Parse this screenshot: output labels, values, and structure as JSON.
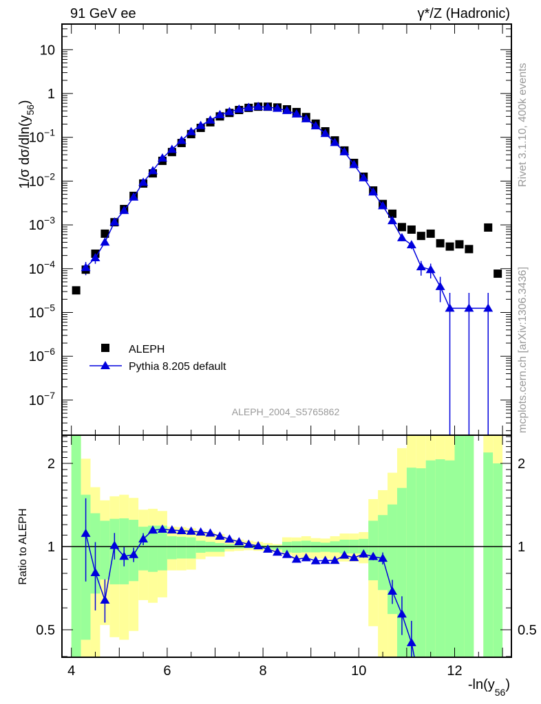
{
  "chart_data": {
    "type": "scatter",
    "title_left": "91 GeV ee",
    "title_right": "γ*/Z (Hadronic)",
    "xlabel": "-ln(y",
    "xlabel_sub": "56",
    "xlabel_end": ")",
    "ylabel": "1/σ  dσ/dln(y",
    "ylabel_sub": "56",
    "ylabel_end": ")",
    "ratio_ylabel": "Ratio to ALEPH",
    "analysis_label": "ALEPH_2004_S5765862",
    "side_label_top": "Rivet 3.1.10,  400k events",
    "side_label_bottom": "mcplots.cern.ch [arXiv:1306.3436]",
    "xlim": [
      3.8,
      13.18
    ],
    "ylim": [
      1.63e-08,
      38.5
    ],
    "yscale": "log",
    "ratio_ylim": [
      0.398,
      2.52
    ],
    "ratio_yscale": "log",
    "x_tick_labels": [
      "4",
      "6",
      "8",
      "10",
      "12"
    ],
    "y_tick_labels": [
      {
        "value": 10,
        "base": "10",
        "exp": ""
      },
      {
        "value": 1,
        "base": "1",
        "exp": ""
      },
      {
        "value": 0.1,
        "base": "10",
        "exp": "−1"
      },
      {
        "value": 0.01,
        "base": "10",
        "exp": "−2"
      },
      {
        "value": 0.001,
        "base": "10",
        "exp": "−3"
      },
      {
        "value": 0.0001,
        "base": "10",
        "exp": "−4"
      },
      {
        "value": 1e-05,
        "base": "10",
        "exp": "−5"
      },
      {
        "value": 1e-06,
        "base": "10",
        "exp": "−6"
      },
      {
        "value": 1e-07,
        "base": "10",
        "exp": "−7"
      }
    ],
    "ratio_tick_labels": [
      "0.5",
      "1",
      "2"
    ],
    "legend": {
      "placement": "lower-left",
      "entries": [
        "ALEPH",
        "Pythia 8.205 default"
      ]
    },
    "colors": {
      "data": "#000000",
      "mc": "#0000dd",
      "band_total": "#ffff99",
      "band_stat": "#99ff99"
    },
    "x": [
      4.1,
      4.3,
      4.5,
      4.7,
      4.9,
      5.1,
      5.3,
      5.5,
      5.7,
      5.9,
      6.1,
      6.3,
      6.5,
      6.7,
      6.9,
      7.1,
      7.3,
      7.5,
      7.7,
      7.9,
      8.1,
      8.3,
      8.5,
      8.7,
      8.9,
      9.1,
      9.3,
      9.5,
      9.7,
      9.9,
      10.1,
      10.3,
      10.5,
      10.7,
      10.9,
      11.1,
      11.3,
      11.5,
      11.7,
      11.9,
      12.1,
      12.3,
      12.5,
      12.7,
      12.9
    ],
    "series": [
      {
        "name": "ALEPH",
        "marker": "square",
        "values": [
          3.2e-05,
          9.5e-05,
          0.00022,
          0.00063,
          0.00115,
          0.0023,
          0.0046,
          0.0088,
          0.015,
          0.029,
          0.046,
          0.074,
          0.118,
          0.164,
          0.22,
          0.3,
          0.36,
          0.42,
          0.47,
          0.5,
          0.5,
          0.48,
          0.435,
          0.377,
          0.29,
          0.205,
          0.137,
          0.085,
          0.05,
          0.026,
          0.0126,
          0.0061,
          0.003,
          0.0018,
          0.00089,
          0.00078,
          0.00056,
          0.00063,
          0.00038,
          0.00032,
          0.00036,
          0.00028,
          null,
          0.00087,
          7.7e-05
        ],
        "band_total": [
          [
            0,
            10
          ],
          [
            0,
            2.08
          ],
          [
            0,
            1.64
          ],
          [
            0.52,
            1.47
          ],
          [
            0.47,
            1.52
          ],
          [
            0.46,
            1.54
          ],
          [
            0.495,
            1.5
          ],
          [
            0.64,
            1.36
          ],
          [
            0.626,
            1.37
          ],
          [
            0.655,
            1.345
          ],
          [
            0.82,
            1.18
          ],
          [
            0.82,
            1.176
          ],
          [
            0.825,
            1.165
          ],
          [
            0.9,
            1.14
          ],
          [
            0.92,
            1.13
          ],
          [
            0.92,
            1.11
          ],
          [
            0.96,
            1.07
          ],
          [
            0.965,
            1.06
          ],
          [
            0.97,
            1.05
          ],
          [
            0.965,
            1.04
          ],
          [
            0.96,
            1.03
          ],
          [
            0.957,
            1.02
          ],
          [
            0.935,
            1.08
          ],
          [
            0.905,
            1.079
          ],
          [
            0.9,
            1.09
          ],
          [
            0.905,
            1.073
          ],
          [
            0.905,
            1.069
          ],
          [
            0.883,
            1.09
          ],
          [
            0.883,
            1.115
          ],
          [
            0.883,
            1.115
          ],
          [
            0.87,
            1.128
          ],
          [
            0.515,
            1.485
          ],
          [
            0,
            1.6
          ],
          [
            0,
            1.85
          ],
          [
            0,
            2.27
          ],
          [
            0,
            10
          ],
          [
            0,
            10
          ],
          [
            0,
            10
          ],
          [
            0,
            10
          ],
          [
            0,
            10
          ],
          [
            0,
            10
          ],
          [
            0,
            10
          ],
          null,
          [
            0,
            10
          ],
          [
            0,
            10
          ]
        ],
        "band_stat": [
          [
            0,
            10
          ],
          [
            0.46,
            1.54
          ],
          [
            0.676,
            1.32
          ],
          [
            0.76,
            1.24
          ],
          [
            0.73,
            1.26
          ],
          [
            0.73,
            1.265
          ],
          [
            0.75,
            1.25
          ],
          [
            0.82,
            1.18
          ],
          [
            0.81,
            1.19
          ],
          [
            0.82,
            1.19
          ],
          [
            0.9,
            1.09
          ],
          [
            0.905,
            1.085
          ],
          [
            0.905,
            1.08
          ],
          [
            0.95,
            1.05
          ],
          [
            0.957,
            1.04
          ],
          [
            0.957,
            1.03
          ],
          [
            0.98,
            1.02
          ],
          [
            0.985,
            1.013
          ],
          [
            0.987,
            1.01
          ],
          [
            0.98,
            1.013
          ],
          [
            0.98,
            1.01
          ],
          [
            0.975,
            1.01
          ],
          [
            0.953,
            1.04
          ],
          [
            0.95,
            1.045
          ],
          [
            0.953,
            1.05
          ],
          [
            0.953,
            1.04
          ],
          [
            0.957,
            1.033
          ],
          [
            0.953,
            1.045
          ],
          [
            0.944,
            1.059
          ],
          [
            0.944,
            1.059
          ],
          [
            0.944,
            1.066
          ],
          [
            0.755,
            1.24
          ],
          [
            0.696,
            1.3
          ],
          [
            0.57,
            1.42
          ],
          [
            0,
            1.63
          ],
          [
            0,
            1.93
          ],
          [
            0,
            1.92
          ],
          [
            0,
            2.05
          ],
          [
            0,
            2.07
          ],
          [
            0,
            2.05
          ],
          [
            0,
            10
          ],
          [
            0,
            10
          ],
          null,
          [
            0,
            2.19
          ],
          [
            0,
            2.0
          ]
        ]
      },
      {
        "name": "Pythia 8.205 default",
        "marker": "triangle",
        "values": [
          null,
          0.000106,
          0.000177,
          0.000403,
          0.00116,
          0.00212,
          0.0043,
          0.00937,
          0.0172,
          0.0335,
          0.0528,
          0.0844,
          0.134,
          0.185,
          0.246,
          0.327,
          0.383,
          0.437,
          0.479,
          0.503,
          0.489,
          0.458,
          0.407,
          0.339,
          0.264,
          0.182,
          0.122,
          0.0757,
          0.0465,
          0.0237,
          0.01184,
          0.00561,
          0.00272,
          0.00124,
          0.000507,
          0.00035,
          0.00011,
          9.5e-05,
          3.9e-05,
          1.25e-05,
          null,
          1.25e-05,
          null,
          1.25e-05,
          null
        ],
        "rel_err": [
          null,
          [
            0.33,
            0.34
          ],
          [
            0.27,
            0.29
          ],
          [
            0.17,
            0.19
          ],
          [
            0.11,
            0.11
          ],
          [
            0.08,
            0.08
          ],
          [
            0.06,
            0.06
          ],
          [
            0.05,
            0.05
          ],
          [
            0.02,
            0.02
          ],
          [
            0.01,
            0.01
          ],
          [
            0.01,
            0.01
          ],
          [
            0.01,
            0.01
          ],
          [
            0.01,
            0.01
          ],
          [
            0.01,
            0.01
          ],
          [
            0.01,
            0.01
          ],
          [
            0.01,
            0.01
          ],
          [
            0.01,
            0.01
          ],
          [
            0.01,
            0.01
          ],
          [
            0.01,
            0.01
          ],
          [
            0.01,
            0.01
          ],
          [
            0.01,
            0.01
          ],
          [
            0.01,
            0.01
          ],
          [
            0.01,
            0.01
          ],
          [
            0.01,
            0.01
          ],
          [
            0.01,
            0.01
          ],
          [
            0.01,
            0.01
          ],
          [
            0.01,
            0.01
          ],
          [
            0.01,
            0.01
          ],
          [
            0.02,
            0.02
          ],
          [
            0.02,
            0.02
          ],
          [
            0.03,
            0.03
          ],
          [
            0.03,
            0.03
          ],
          [
            0.05,
            0.05
          ],
          [
            0.1,
            0.1
          ],
          [
            0.16,
            0.16
          ],
          [
            0.2,
            0.2
          ],
          [
            0.37,
            0.36
          ],
          [
            0.37,
            0.37
          ],
          [
            0.56,
            0.67
          ],
          [
            1.0,
            1.24
          ],
          null,
          [
            1.0,
            1.24
          ],
          null,
          [
            1.0,
            1.24
          ],
          null
        ]
      }
    ]
  }
}
